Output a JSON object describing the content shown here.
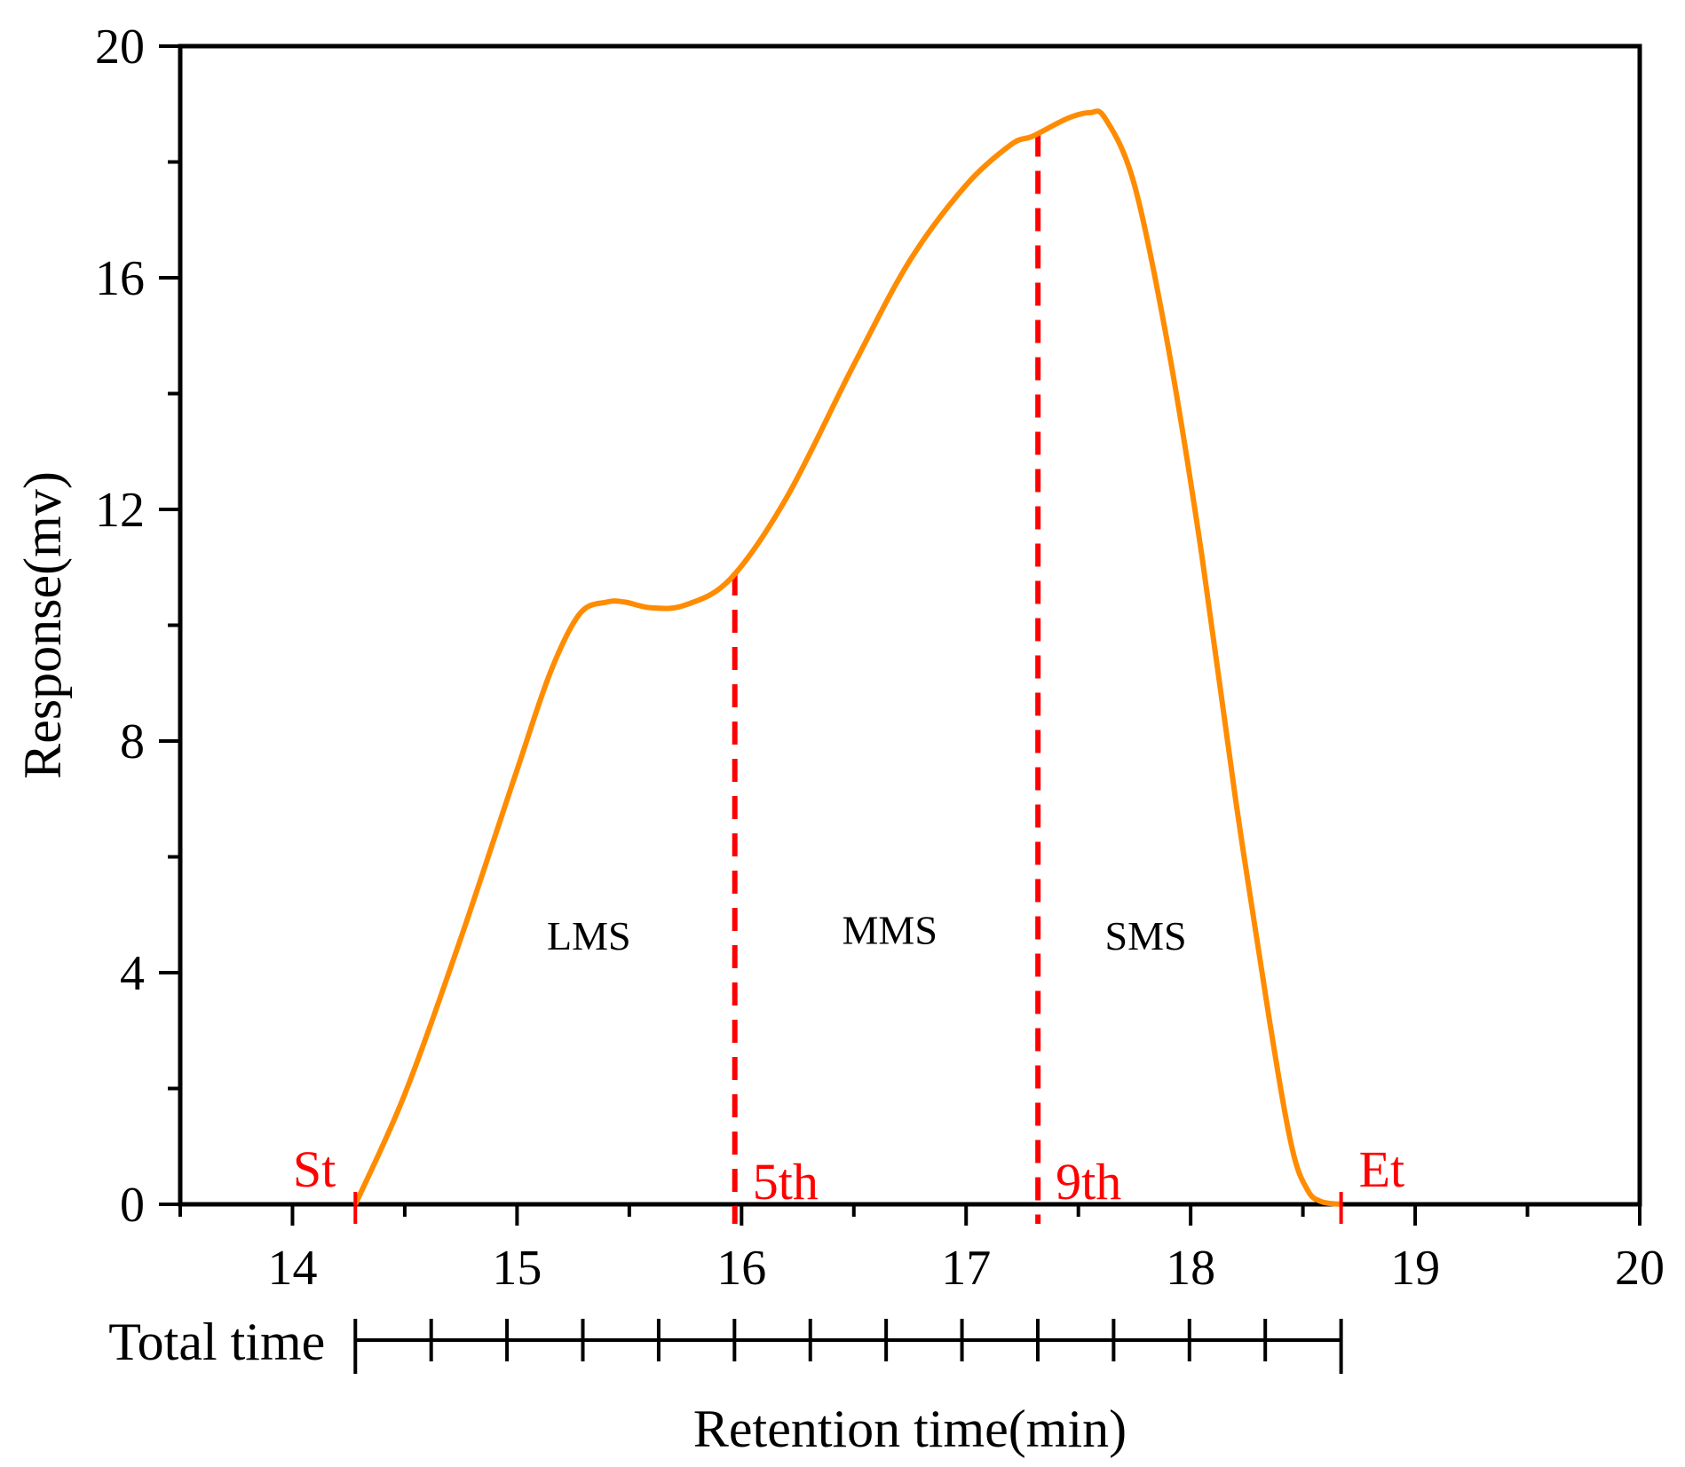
{
  "chart_data": {
    "type": "line",
    "title": "",
    "xlabel": "Retention time(min)",
    "ylabel": "Response(mv)",
    "xlim": [
      13.5,
      20
    ],
    "ylim": [
      0,
      20
    ],
    "x_ticks": [
      "14",
      "15",
      "16",
      "17",
      "18",
      "19",
      "20"
    ],
    "y_ticks": [
      "0",
      "4",
      "8",
      "12",
      "16",
      "20"
    ],
    "grid": false,
    "series": [
      {
        "name": "Response",
        "color": "#ff8c00",
        "x": [
          14.28,
          14.5,
          14.75,
          15.0,
          15.15,
          15.28,
          15.4,
          15.48,
          15.6,
          15.75,
          15.95,
          16.2,
          16.5,
          16.75,
          17.0,
          17.2,
          17.3,
          17.45,
          17.55,
          17.62,
          17.75,
          17.9,
          18.05,
          18.2,
          18.35,
          18.45,
          18.52,
          18.58,
          18.67
        ],
        "y": [
          0.0,
          1.9,
          4.6,
          7.5,
          9.2,
          10.2,
          10.4,
          10.4,
          10.3,
          10.35,
          10.8,
          12.2,
          14.5,
          16.3,
          17.6,
          18.3,
          18.45,
          18.75,
          18.85,
          18.75,
          17.6,
          14.8,
          11.2,
          7.0,
          3.2,
          1.0,
          0.25,
          0.05,
          0.0
        ]
      }
    ],
    "markers": [
      {
        "label": "St",
        "x": 14.28,
        "color": "#ff0000",
        "line": false
      },
      {
        "label": "5th",
        "x": 15.97,
        "color": "#ff0000",
        "line": true
      },
      {
        "label": "9th",
        "x": 17.32,
        "color": "#ff0000",
        "line": true
      },
      {
        "label": "Et",
        "x": 18.67,
        "color": "#ff0000",
        "line": false
      }
    ],
    "regions": [
      {
        "label": "LMS",
        "x": 15.32,
        "y": 4.4
      },
      {
        "label": "MMS",
        "x": 16.66,
        "y": 4.5
      },
      {
        "label": "SMS",
        "x": 17.8,
        "y": 4.4
      }
    ],
    "total_time": {
      "label": "Total time",
      "start": 14.28,
      "end": 18.67,
      "divisions": 13
    }
  }
}
